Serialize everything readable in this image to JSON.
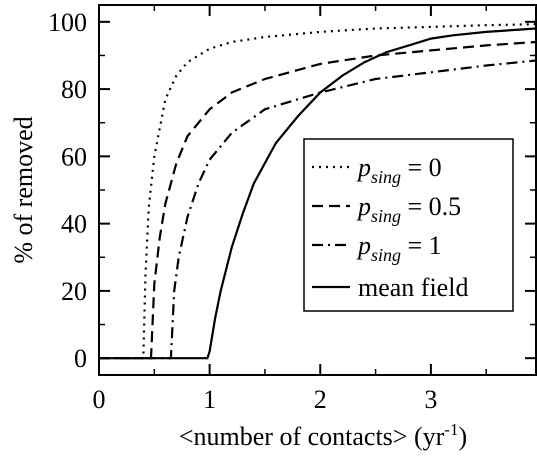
{
  "chart_data": {
    "type": "line",
    "xlabel": "<number of contacts> (yr",
    "xlabel_sup": "-1",
    "xlabel_close": ")",
    "ylabel": "% of removed",
    "xlim": [
      0,
      3.95
    ],
    "ylim": [
      -5,
      105
    ],
    "xticks": [
      0,
      1,
      2,
      3
    ],
    "yticks": [
      0,
      20,
      40,
      60,
      80,
      100
    ],
    "grid": false,
    "legend_position": "right-center",
    "legend_style": "boxed",
    "series": [
      {
        "label_base": "p",
        "label_sub": "sing",
        "label_suffix": " = 0",
        "style": "dotted",
        "color": "#000000",
        "points": [
          [
            0,
            0
          ],
          [
            0.4,
            0
          ],
          [
            0.42,
            25
          ],
          [
            0.45,
            45
          ],
          [
            0.5,
            60
          ],
          [
            0.6,
            77
          ],
          [
            0.7,
            84
          ],
          [
            0.8,
            88
          ],
          [
            1.0,
            92
          ],
          [
            1.2,
            94
          ],
          [
            1.5,
            95.5
          ],
          [
            2.0,
            97
          ],
          [
            2.5,
            98
          ],
          [
            3.0,
            98.5
          ],
          [
            3.5,
            99
          ],
          [
            3.95,
            99.3
          ]
        ]
      },
      {
        "label_base": "p",
        "label_sub": "sing",
        "label_suffix": " = 0.5",
        "style": "dashed",
        "color": "#000000",
        "points": [
          [
            0,
            0
          ],
          [
            0.47,
            0
          ],
          [
            0.5,
            22
          ],
          [
            0.55,
            36
          ],
          [
            0.6,
            46
          ],
          [
            0.7,
            58
          ],
          [
            0.8,
            66
          ],
          [
            1.0,
            74
          ],
          [
            1.2,
            79
          ],
          [
            1.5,
            83
          ],
          [
            2.0,
            87.5
          ],
          [
            2.5,
            90
          ],
          [
            3.0,
            91.5
          ],
          [
            3.5,
            93
          ],
          [
            3.95,
            94
          ]
        ]
      },
      {
        "label_base": "p",
        "label_sub": "sing",
        "label_suffix": " = 1",
        "style": "dashdot",
        "color": "#000000",
        "points": [
          [
            0,
            0
          ],
          [
            0.65,
            0
          ],
          [
            0.68,
            20
          ],
          [
            0.72,
            30
          ],
          [
            0.8,
            42
          ],
          [
            0.9,
            52
          ],
          [
            1.0,
            59
          ],
          [
            1.2,
            67
          ],
          [
            1.5,
            74
          ],
          [
            2.0,
            79
          ],
          [
            2.5,
            83
          ],
          [
            3.0,
            85
          ],
          [
            3.5,
            87
          ],
          [
            3.95,
            88.5
          ]
        ]
      },
      {
        "label_base": "mean field",
        "label_sub": "",
        "label_suffix": "",
        "style": "solid",
        "color": "#000000",
        "points": [
          [
            0,
            0
          ],
          [
            0.98,
            0
          ],
          [
            1.0,
            2
          ],
          [
            1.05,
            12
          ],
          [
            1.1,
            20
          ],
          [
            1.2,
            33
          ],
          [
            1.3,
            43
          ],
          [
            1.4,
            52
          ],
          [
            1.5,
            58
          ],
          [
            1.6,
            64
          ],
          [
            1.8,
            72
          ],
          [
            2.0,
            79
          ],
          [
            2.2,
            84
          ],
          [
            2.4,
            88
          ],
          [
            2.6,
            91
          ],
          [
            2.8,
            93
          ],
          [
            3.0,
            95
          ],
          [
            3.2,
            96
          ],
          [
            3.5,
            97
          ],
          [
            3.95,
            98
          ]
        ]
      }
    ]
  }
}
